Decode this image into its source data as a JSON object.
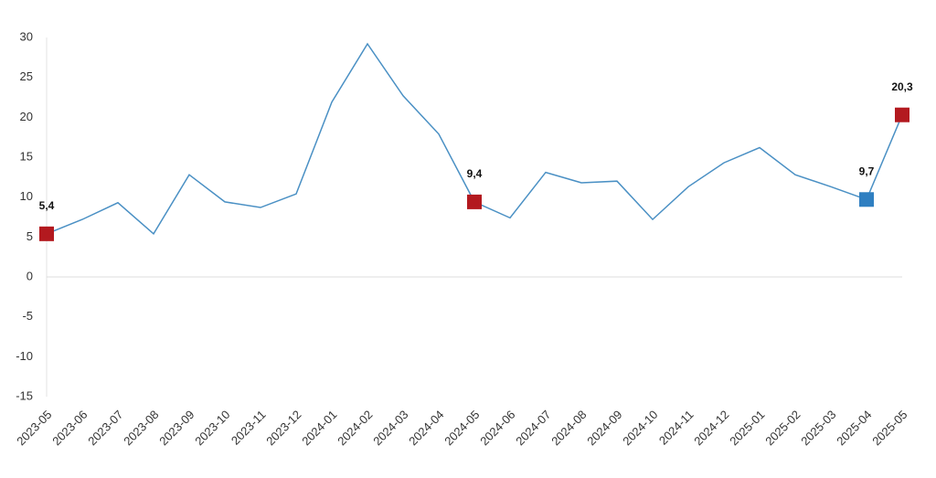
{
  "chart_data": {
    "type": "line",
    "categories": [
      "2023-05",
      "2023-06",
      "2023-07",
      "2023-08",
      "2023-09",
      "2023-10",
      "2023-11",
      "2023-12",
      "2024-01",
      "2024-02",
      "2024-03",
      "2024-04",
      "2024-05",
      "2024-06",
      "2024-07",
      "2024-08",
      "2024-09",
      "2024-10",
      "2024-11",
      "2024-12",
      "2025-01",
      "2025-02",
      "2025-03",
      "2025-04",
      "2025-05"
    ],
    "values": [
      5.4,
      7.2,
      9.3,
      5.4,
      12.8,
      9.4,
      8.7,
      10.4,
      21.9,
      29.2,
      22.7,
      17.9,
      9.4,
      7.4,
      13.1,
      11.8,
      12.0,
      7.2,
      11.3,
      14.3,
      16.2,
      12.8,
      11.3,
      9.7,
      20.3
    ],
    "value_labels": [
      "5,4",
      null,
      null,
      null,
      null,
      null,
      null,
      null,
      null,
      null,
      null,
      null,
      "9,4",
      null,
      null,
      null,
      null,
      null,
      null,
      null,
      null,
      null,
      null,
      "9,7",
      "20,3"
    ],
    "marker_colors": [
      "#b3191f",
      null,
      null,
      null,
      null,
      null,
      null,
      null,
      null,
      null,
      null,
      null,
      "#b3191f",
      null,
      null,
      null,
      null,
      null,
      null,
      null,
      null,
      null,
      null,
      "#2f7fc1",
      "#b3191f"
    ],
    "color": "#4a90c4",
    "ylim": [
      -15,
      30
    ],
    "yticks": [
      -15,
      -10,
      -5,
      0,
      5,
      10,
      15,
      20,
      25,
      30
    ],
    "zero_line": true
  }
}
